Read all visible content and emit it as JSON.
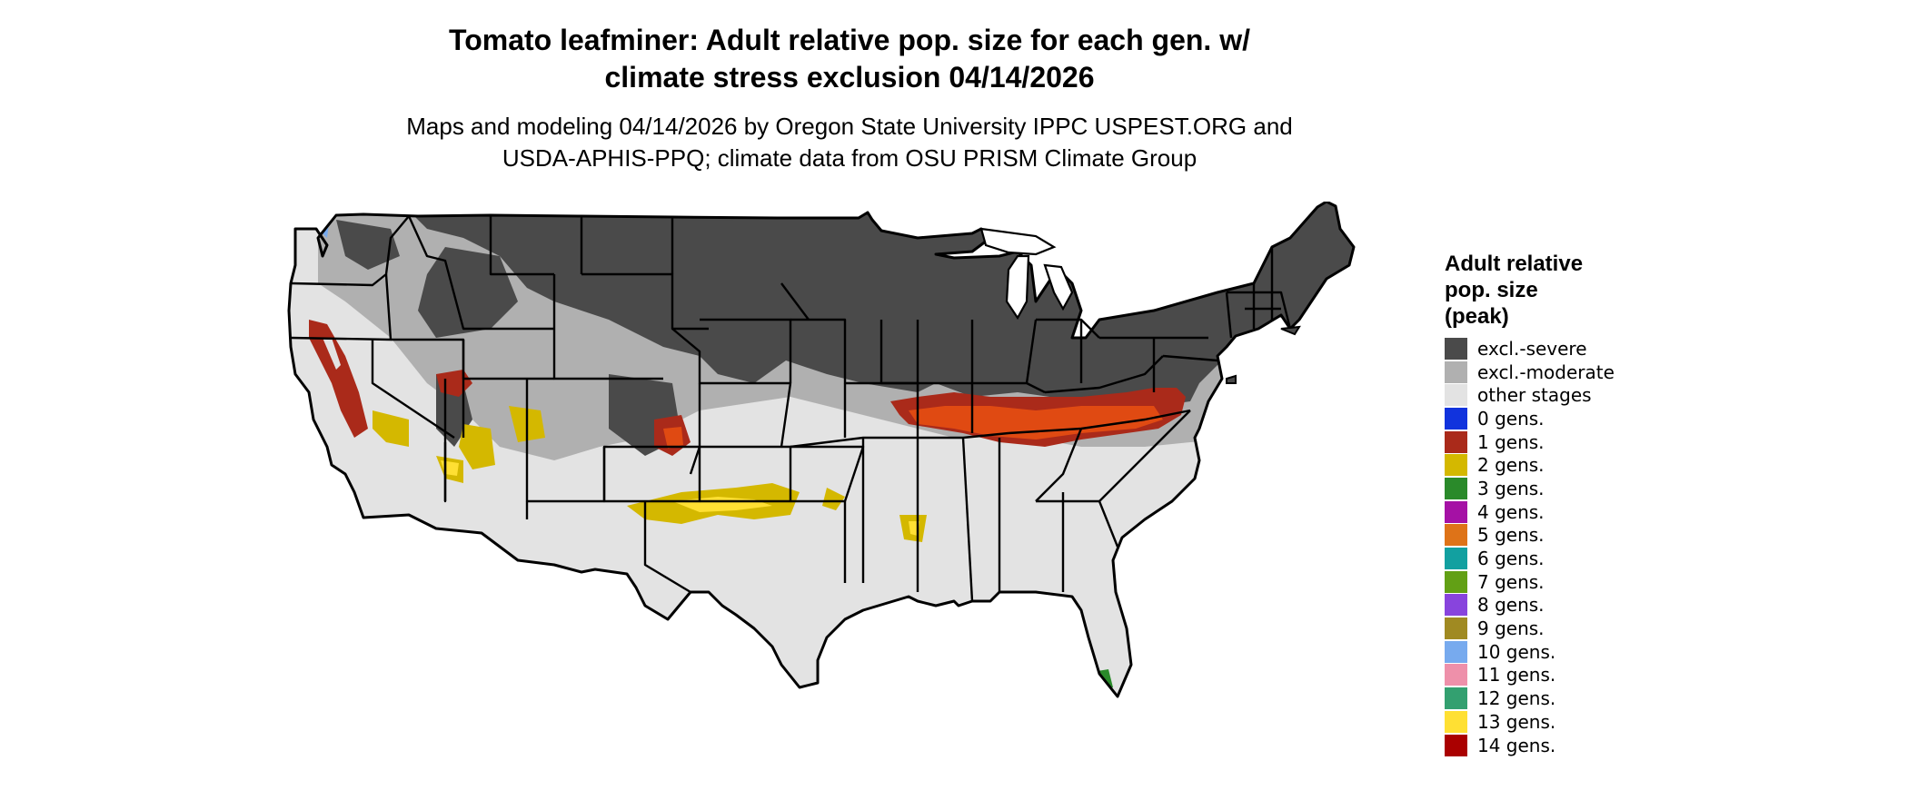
{
  "title": "Tomato leafminer: Adult relative pop. size for each gen. w/\nclimate stress exclusion 04/14/2026",
  "subtitle": "Maps and modeling 04/14/2026 by Oregon State University IPPC USPEST.ORG and\nUSDA-APHIS-PPQ; climate data from OSU PRISM Climate Group",
  "legend": {
    "title": "Adult relative\npop. size\n(peak)",
    "items": [
      {
        "label": "excl.-severe",
        "color": "#4a4a4a"
      },
      {
        "label": "excl.-moderate",
        "color": "#b0b0b0"
      },
      {
        "label": "other stages",
        "color": "#e3e3e3"
      },
      {
        "label": "0 gens.",
        "color": "#1133dd"
      },
      {
        "label": "1 gens.",
        "color": "#aa2a1a"
      },
      {
        "label": "2 gens.",
        "color": "#d4b800"
      },
      {
        "label": "3 gens.",
        "color": "#2a8a2a"
      },
      {
        "label": "4 gens.",
        "color": "#a511a5"
      },
      {
        "label": "5 gens.",
        "color": "#de7318"
      },
      {
        "label": "6 gens.",
        "color": "#12a0a0"
      },
      {
        "label": "7 gens.",
        "color": "#62a015"
      },
      {
        "label": "8 gens.",
        "color": "#8844dd"
      },
      {
        "label": "9 gens.",
        "color": "#a08a22"
      },
      {
        "label": "10 gens.",
        "color": "#77aaee"
      },
      {
        "label": "11 gens.",
        "color": "#ee90aa"
      },
      {
        "label": "12 gens.",
        "color": "#33a070"
      },
      {
        "label": "13 gens.",
        "color": "#ffe033"
      },
      {
        "label": "14 gens.",
        "color": "#aa0000"
      }
    ]
  },
  "map_colors": {
    "severe": "#4a4a4a",
    "moderate": "#b0b0b0",
    "other": "#e3e3e3",
    "gen1": "#aa2a1a",
    "gen1_light": "#e04a12",
    "gen2": "#d4b800",
    "gen13": "#ffe033",
    "gen0": "#1133dd",
    "gen10": "#77aaee",
    "gen3": "#2a8a2a",
    "border": "#000000"
  }
}
